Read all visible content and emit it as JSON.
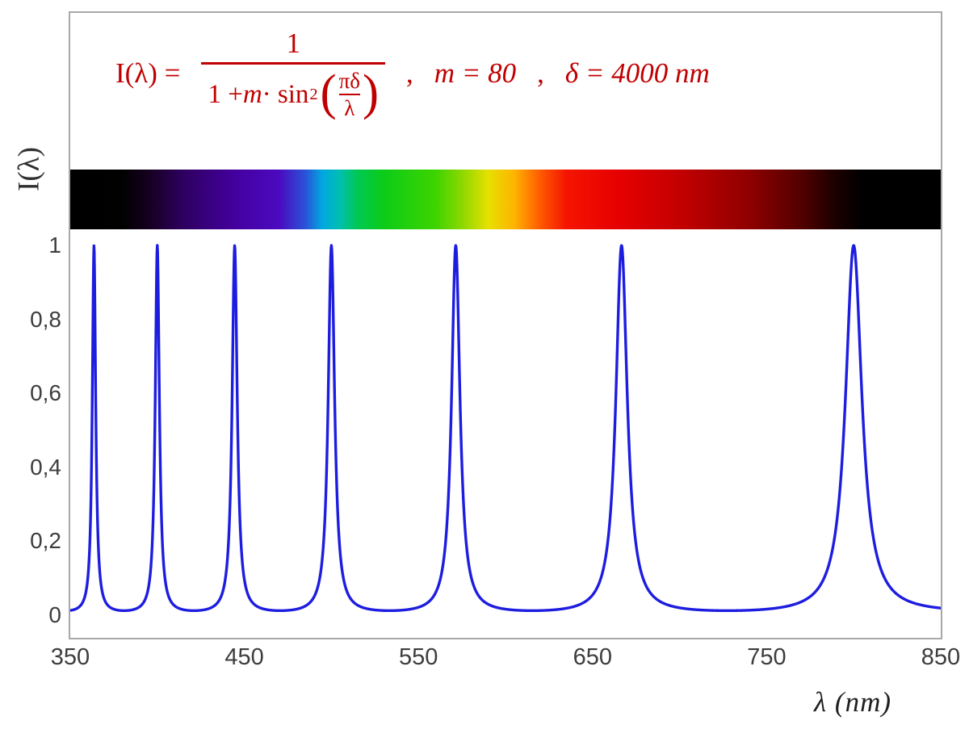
{
  "figure": {
    "ylabel": "I(λ)",
    "xlabel": "λ  (nm)"
  },
  "formula": {
    "color": "#c00000",
    "lhs": "I(λ) =",
    "numerator": "1",
    "den_one_plus": "1 + ",
    "den_m": "m",
    "den_dot_sin": " · sin",
    "den_sup": "2",
    "lparen": "(",
    "inner_num": "πδ",
    "inner_den": "λ",
    "rparen": ")",
    "comma1": ",",
    "param_m": "m = 80",
    "comma2": ",",
    "param_delta": "δ = 4000 nm"
  },
  "chart_data": {
    "type": "line",
    "title": "I(λ) = 1 / (1 + m·sin²(πδ/λ)) ,  m = 80 ,  δ = 4000 nm",
    "xlabel": "λ (nm)",
    "ylabel": "I(λ)",
    "xlim": [
      350,
      850
    ],
    "ylim": [
      0,
      1
    ],
    "grid": false,
    "legend": "none",
    "x_ticks": [
      350,
      450,
      550,
      650,
      750,
      850
    ],
    "x_tick_labels": [
      "350",
      "450",
      "550",
      "650",
      "750",
      "850"
    ],
    "y_ticks": [
      0,
      0.2,
      0.4,
      0.6,
      0.8,
      1
    ],
    "y_tick_labels": [
      "0",
      "0,2",
      "0,4",
      "0,6",
      "0,8",
      "1"
    ],
    "series": [
      {
        "name": "I(λ)",
        "color": "#1d1de0",
        "function": "I(λ) = 1 / (1 + m·sin²(π·δ/λ))",
        "params": {
          "m": 80,
          "delta_nm": 4000
        },
        "sample_step_nm": 0.2,
        "peaks_nm": [
          363.6,
          400.0,
          444.4,
          500.0,
          571.4,
          666.7,
          800.0
        ],
        "peak_value": 1,
        "baseline_value": 0.0123
      }
    ],
    "spectrum_bar": {
      "range_nm": [
        350,
        850
      ],
      "stops": [
        {
          "pos": 0,
          "color": "#000000"
        },
        {
          "pos": 6,
          "color": "#010101"
        },
        {
          "pos": 9,
          "color": "#15001f"
        },
        {
          "pos": 13,
          "color": "#2e0060"
        },
        {
          "pos": 19,
          "color": "#44009f"
        },
        {
          "pos": 24,
          "color": "#4b0ac0"
        },
        {
          "pos": 27,
          "color": "#2a52d8"
        },
        {
          "pos": 29,
          "color": "#00a8e0"
        },
        {
          "pos": 31,
          "color": "#00bfae"
        },
        {
          "pos": 33,
          "color": "#00c853"
        },
        {
          "pos": 36,
          "color": "#0ccc18"
        },
        {
          "pos": 42,
          "color": "#3ed400"
        },
        {
          "pos": 45,
          "color": "#8cd800"
        },
        {
          "pos": 48,
          "color": "#e6e000"
        },
        {
          "pos": 51,
          "color": "#ffb400"
        },
        {
          "pos": 54,
          "color": "#ff5a00"
        },
        {
          "pos": 57,
          "color": "#f51400"
        },
        {
          "pos": 63,
          "color": "#e60000"
        },
        {
          "pos": 70,
          "color": "#c30000"
        },
        {
          "pos": 78,
          "color": "#8f0000"
        },
        {
          "pos": 84,
          "color": "#520000"
        },
        {
          "pos": 88,
          "color": "#1a0000"
        },
        {
          "pos": 91,
          "color": "#000000"
        },
        {
          "pos": 100,
          "color": "#000000"
        }
      ]
    }
  }
}
